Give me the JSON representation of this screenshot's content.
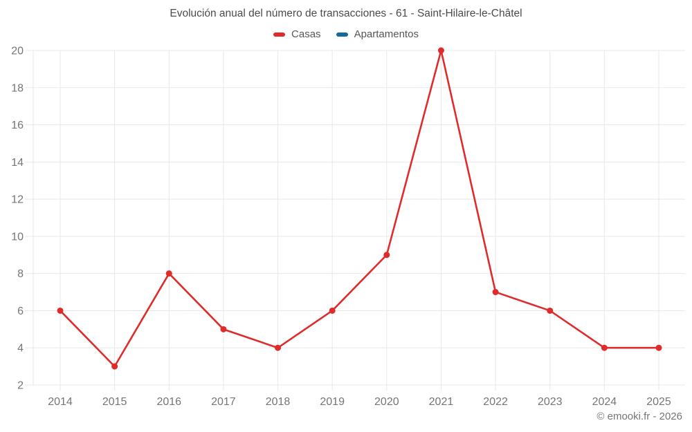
{
  "chart_data": {
    "type": "line",
    "title": "Evolución anual del número de transacciones - 61 - Saint-Hilaire-le-Châtel",
    "categories": [
      "2014",
      "2015",
      "2016",
      "2017",
      "2018",
      "2019",
      "2020",
      "2021",
      "2022",
      "2023",
      "2024",
      "2025"
    ],
    "series": [
      {
        "name": "Casas",
        "color": "#e02b2b",
        "values": [
          6,
          3,
          8,
          5,
          4,
          6,
          9,
          20,
          7,
          6,
          4,
          4
        ]
      },
      {
        "name": "Apartamentos",
        "color": "#1569a0",
        "values": []
      }
    ],
    "ylim": [
      2,
      20
    ],
    "yticks": [
      2,
      4,
      6,
      8,
      10,
      12,
      14,
      16,
      18,
      20
    ],
    "xlabel": "",
    "ylabel": "",
    "grid": true,
    "legend_position": "top"
  },
  "legend": {
    "casas_label": "Casas",
    "apartamentos_label": "Apartamentos"
  },
  "footer": {
    "copyright": "© emooki.fr - 2026"
  },
  "colors": {
    "grid": "#e8e8e8",
    "tick_label": "#757575",
    "title_text": "#4b4b4b",
    "casas": "#e02b2b",
    "apartamentos": "#1569a0"
  }
}
